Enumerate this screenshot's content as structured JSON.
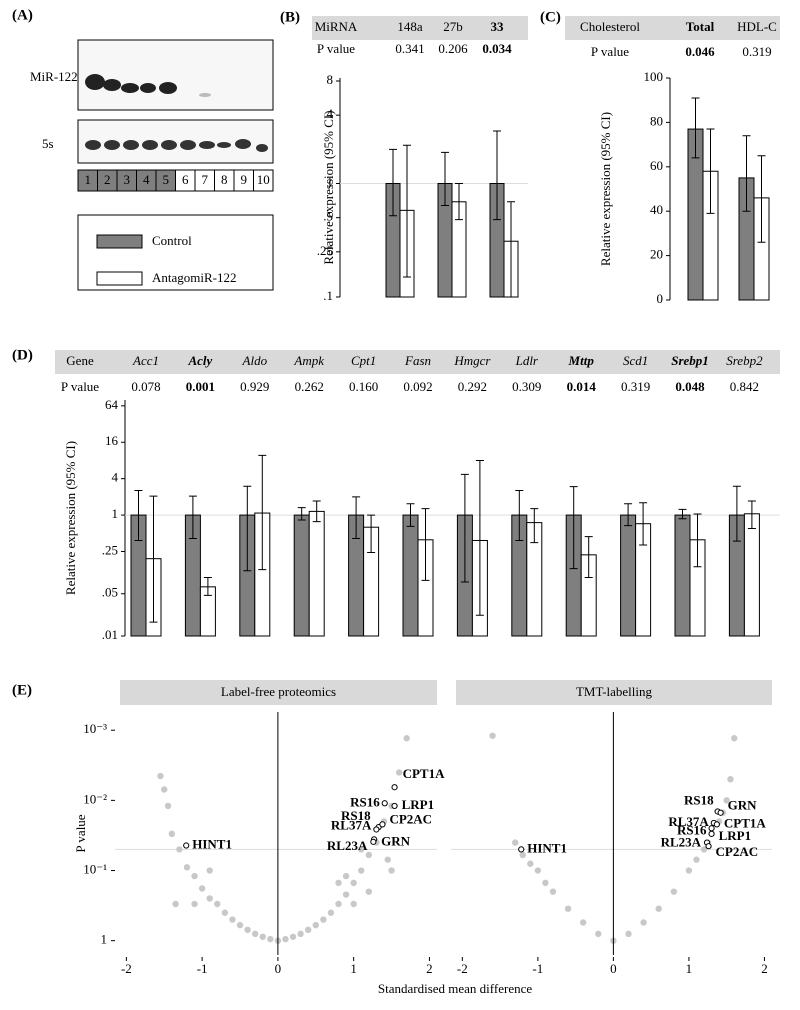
{
  "blot": {
    "panel_label": "(A)",
    "rows": [
      "MiR-122",
      "5s"
    ],
    "lanes": [
      "1",
      "2",
      "3",
      "4",
      "5",
      "6",
      "7",
      "8",
      "9",
      "10"
    ],
    "shaded_lanes": 5
  },
  "chart_data": [
    {
      "type": "bar",
      "panel_label": "(B)",
      "table_header": "MiRNA",
      "pvalue_label": "P value",
      "categories": [
        "148a",
        "27b",
        "33"
      ],
      "p_values": [
        "0.341",
        "0.206",
        "0.034"
      ],
      "significant": [
        false,
        false,
        true
      ],
      "y_label": "Relative expression (95% CI)",
      "y_scale": "log",
      "ylim": [
        0.1,
        8.5
      ],
      "yticks": [
        8,
        4,
        1,
        {
          "value": 0.5,
          "label": ".5"
        },
        {
          "value": 0.25,
          "label": ".25"
        },
        {
          "value": 0.1,
          "label": ".1"
        }
      ],
      "reference_line": 1,
      "series": [
        {
          "name": "Control",
          "color": "#7f7f7f",
          "values": [
            1,
            1,
            1
          ],
          "lower": [
            0.52,
            0.64,
            0.48
          ],
          "upper": [
            2.0,
            1.88,
            2.9
          ]
        },
        {
          "name": "AntagomiR-122",
          "color": "#ffffff",
          "values": [
            0.58,
            0.69,
            0.31
          ],
          "lower": [
            0.15,
            0.48,
            0.1
          ],
          "upper": [
            2.17,
            1.0,
            0.69
          ]
        }
      ]
    },
    {
      "type": "bar",
      "panel_label": "(C)",
      "table_header": "Cholesterol",
      "pvalue_label": "P value",
      "categories": [
        "Total",
        "HDL-C"
      ],
      "p_values": [
        "0.046",
        "0.319"
      ],
      "significant": [
        true,
        false
      ],
      "y_label": "Relative expression (95% CI)",
      "y_scale": "linear",
      "ylim": [
        0,
        100
      ],
      "yticks": [
        0,
        20,
        40,
        60,
        80,
        100
      ],
      "series": [
        {
          "color": "#7f7f7f",
          "values": [
            77,
            55
          ],
          "lower": [
            64,
            40
          ],
          "upper": [
            91,
            74
          ]
        },
        {
          "color": "#ffffff",
          "values": [
            58,
            46
          ],
          "lower": [
            39,
            26
          ],
          "upper": [
            77,
            65
          ]
        }
      ]
    },
    {
      "type": "bar",
      "panel_label": "(D)",
      "table_header": "Gene",
      "pvalue_label": "P value",
      "italic_categories": true,
      "categories": [
        "Acc1",
        "Acly",
        "Aldo",
        "Ampk",
        "Cpt1",
        "Fasn",
        "Hmgcr",
        "Ldlr",
        "Mttp",
        "Scd1",
        "Srebp1",
        "Srebp2"
      ],
      "p_values": [
        "0.078",
        "0.001",
        "0.929",
        "0.262",
        "0.160",
        "0.092",
        "0.292",
        "0.309",
        "0.014",
        "0.319",
        "0.048",
        "0.842"
      ],
      "significant": [
        false,
        true,
        false,
        false,
        false,
        false,
        false,
        false,
        true,
        false,
        true,
        false
      ],
      "y_label": "Relative expression (95% CI)",
      "y_scale": "log",
      "ylim": [
        0.01,
        80
      ],
      "yticks": [
        64,
        16,
        4,
        1,
        {
          "value": 0.25,
          "label": ".25"
        },
        {
          "value": 0.05,
          "label": ".05"
        },
        {
          "value": 0.01,
          "label": ".01"
        }
      ],
      "reference_line": 1,
      "series": [
        {
          "color": "#7f7f7f",
          "values": [
            1,
            1,
            1,
            1,
            1,
            1,
            1,
            1,
            1,
            1,
            1,
            1
          ],
          "lower": [
            0.38,
            0.41,
            0.12,
            0.83,
            0.41,
            0.65,
            0.078,
            0.38,
            0.13,
            0.67,
            0.87,
            0.37
          ],
          "upper": [
            2.55,
            2.06,
            3.0,
            1.33,
            2.0,
            1.54,
            4.7,
            2.55,
            2.95,
            1.54,
            1.24,
            3.0
          ]
        },
        {
          "color": "#ffffff",
          "values": [
            0.19,
            0.065,
            1.08,
            1.15,
            0.63,
            0.39,
            0.38,
            0.75,
            0.22,
            0.72,
            0.39,
            1.05
          ],
          "lower": [
            0.017,
            0.047,
            0.125,
            0.78,
            0.24,
            0.083,
            0.022,
            0.35,
            0.093,
            0.32,
            0.14,
            0.6
          ],
          "upper": [
            2.06,
            0.093,
            9.7,
            1.71,
            1.0,
            1.28,
            8.0,
            1.28,
            0.44,
            1.6,
            1.04,
            1.71
          ]
        }
      ]
    },
    {
      "type": "scatter",
      "panel_label": "(E)",
      "title": "Label-free proteomics",
      "x_label": "Standardised mean difference",
      "y_label": "P value",
      "xlim": [
        -2.15,
        2.1
      ],
      "xticks": [
        -2,
        -1,
        0,
        1,
        2
      ],
      "y_scale": "log",
      "ylim": [
        1.6,
        0.00055
      ],
      "yticks": [
        {
          "value": 0.001,
          "label": "10⁻³"
        },
        {
          "value": 0.01,
          "label": "10⁻²"
        },
        {
          "value": 0.1,
          "label": "10⁻¹"
        },
        1
      ],
      "reference_x": 0,
      "reference_y": 0.05,
      "points": {
        "color": "#c8c8c8",
        "x": [
          -1.55,
          -1.5,
          -1.45,
          -1.4,
          -1.3,
          -1.2,
          -1.1,
          -1.0,
          -0.9,
          -0.8,
          -0.7,
          -0.6,
          -0.5,
          -0.4,
          -0.3,
          -0.2,
          -0.1,
          0,
          0.1,
          0.2,
          0.3,
          0.4,
          0.5,
          0.6,
          0.7,
          0.8,
          0.9,
          1.0,
          1.1,
          1.2,
          1.3,
          1.4,
          1.5,
          1.6,
          1.7,
          1.2,
          1.0,
          0.9,
          1.5,
          -1.35,
          1.1,
          1.45,
          0.8,
          -0.9,
          -1.1
        ],
        "y": [
          0.0045,
          0.007,
          0.012,
          0.03,
          0.05,
          0.09,
          0.12,
          0.18,
          0.25,
          0.3,
          0.4,
          0.5,
          0.6,
          0.7,
          0.8,
          0.88,
          0.95,
          1,
          0.95,
          0.88,
          0.8,
          0.7,
          0.6,
          0.5,
          0.4,
          0.3,
          0.22,
          0.15,
          0.1,
          0.06,
          0.04,
          0.02,
          0.012,
          0.004,
          0.0013,
          0.2,
          0.3,
          0.12,
          0.1,
          0.3,
          0.05,
          0.07,
          0.15,
          0.1,
          0.3
        ]
      },
      "highlighted": {
        "labels": [
          "CPT1A",
          "RS16",
          "LRP1",
          "RS18",
          "RL37A",
          "CP2AC",
          "GRN",
          "RL23A",
          "HINT1"
        ],
        "x": [
          1.54,
          1.41,
          1.54,
          1.33,
          1.3,
          1.38,
          1.27,
          1.26,
          -1.21
        ],
        "y": [
          0.0065,
          0.011,
          0.012,
          0.024,
          0.026,
          0.022,
          0.036,
          0.039,
          0.044
        ]
      }
    },
    {
      "type": "scatter",
      "title": "TMT-labelling",
      "xlim": [
        -2.15,
        2.1
      ],
      "xticks": [
        -2,
        -1,
        0,
        1,
        2
      ],
      "y_scale": "log",
      "ylim": [
        1.6,
        0.00055
      ],
      "reference_x": 0,
      "reference_y": 0.05,
      "points": {
        "color": "#c8c8c8",
        "x": [
          -1.6,
          -1.3,
          -1.2,
          -1.0,
          -0.8,
          -0.6,
          -0.4,
          -0.2,
          0,
          0.2,
          0.4,
          0.6,
          0.8,
          1.0,
          1.1,
          1.2,
          1.3,
          1.4,
          1.5,
          1.55,
          1.6,
          1.45,
          -0.9,
          -1.1,
          1.25
        ],
        "y": [
          0.0012,
          0.04,
          0.06,
          0.1,
          0.2,
          0.35,
          0.55,
          0.8,
          1,
          0.8,
          0.55,
          0.35,
          0.2,
          0.1,
          0.07,
          0.05,
          0.03,
          0.02,
          0.01,
          0.005,
          0.0013,
          0.015,
          0.15,
          0.08,
          0.04
        ]
      },
      "highlighted": {
        "labels": [
          "RS18",
          "GRN",
          "RL37A",
          "CPT1A",
          "RS16",
          "LRP1",
          "RL23A",
          "CP2AC",
          "HINT1"
        ],
        "x": [
          1.38,
          1.42,
          1.33,
          1.37,
          1.3,
          1.3,
          1.24,
          1.26,
          -1.22
        ],
        "y": [
          0.0144,
          0.015,
          0.021,
          0.022,
          0.025,
          0.03,
          0.04,
          0.045,
          0.05
        ]
      }
    }
  ]
}
